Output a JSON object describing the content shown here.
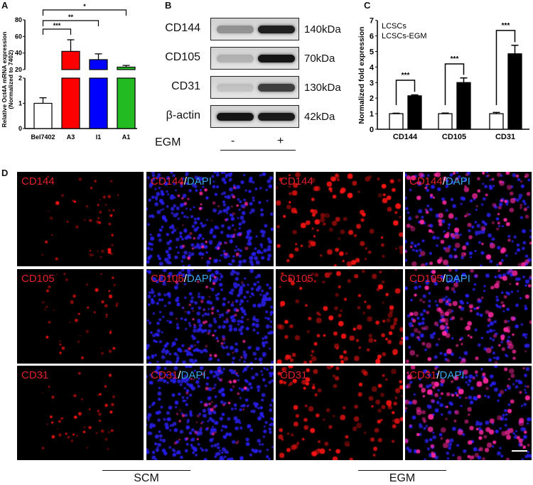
{
  "panels": {
    "a": "A",
    "b": "B",
    "c": "C",
    "d": "D"
  },
  "chart_data": [
    {
      "type": "bar",
      "panel": "A",
      "ylabel_line1": "Relative  Oct4A mRNA expression",
      "ylabel_line2": "(Normalized to 7402)",
      "categories": [
        "Bel7402",
        "A3",
        "I1",
        "A1"
      ],
      "values": [
        1,
        42,
        32,
        23
      ],
      "errors": [
        0.22,
        14,
        7,
        2
      ],
      "colors": [
        "#ffffff",
        "#ff0000",
        "#0000ff",
        "#22bb22"
      ],
      "axis_break": [
        2,
        20
      ],
      "yticks_lower": [
        "0",
        "1",
        "2"
      ],
      "yticks_upper": [
        "20",
        "40",
        "60",
        "80"
      ],
      "ylim": [
        0,
        80
      ],
      "significance": [
        {
          "from": "Bel7402",
          "to": "A3",
          "label": "***"
        },
        {
          "from": "Bel7402",
          "to": "I1",
          "label": "**"
        },
        {
          "from": "Bel7402",
          "to": "A1",
          "label": "*"
        }
      ]
    },
    {
      "type": "bar",
      "panel": "C",
      "ylabel": "Normalized fold expression",
      "categories": [
        "CD144",
        "CD105",
        "CD31"
      ],
      "series": [
        {
          "name": "LCSCs",
          "values": [
            1.0,
            1.0,
            1.0
          ],
          "errors": [
            0.03,
            0.04,
            0.08
          ],
          "color": "#ffffff"
        },
        {
          "name": "LCSCs-EGM",
          "values": [
            2.15,
            3.0,
            4.85
          ],
          "errors": [
            0.06,
            0.3,
            0.55
          ],
          "color": "#000000"
        }
      ],
      "yticks": [
        "0",
        "1",
        "2",
        "3",
        "4",
        "5",
        "6",
        "7"
      ],
      "ylim": [
        0,
        7
      ],
      "legend": "top-left",
      "significance": [
        {
          "category": "CD144",
          "label": "***",
          "top": 3.15
        },
        {
          "category": "CD105",
          "label": "***",
          "top": 4.2
        },
        {
          "category": "CD31",
          "label": "***",
          "top": 6.35
        }
      ]
    }
  ],
  "western": {
    "rows": [
      {
        "protein": "CD144",
        "kda": "140kDa",
        "minus": 0.35,
        "plus": 0.9
      },
      {
        "protein": "CD105",
        "kda": "70kDa",
        "minus": 0.2,
        "plus": 0.95
      },
      {
        "protein": "CD31",
        "kda": "130kDa",
        "minus": 0.12,
        "plus": 0.75
      },
      {
        "protein": "β-actin",
        "kda": "42kDa",
        "minus": 0.95,
        "plus": 0.92
      }
    ],
    "treatment_label": "EGM",
    "minus": "-",
    "plus": "+"
  },
  "microscopy": {
    "rows": [
      {
        "marker": "CD144"
      },
      {
        "marker": "CD105"
      },
      {
        "marker": "CD31"
      }
    ],
    "merge_suffix": "DAPI",
    "slash": "/",
    "groups": [
      "SCM",
      "EGM"
    ]
  }
}
